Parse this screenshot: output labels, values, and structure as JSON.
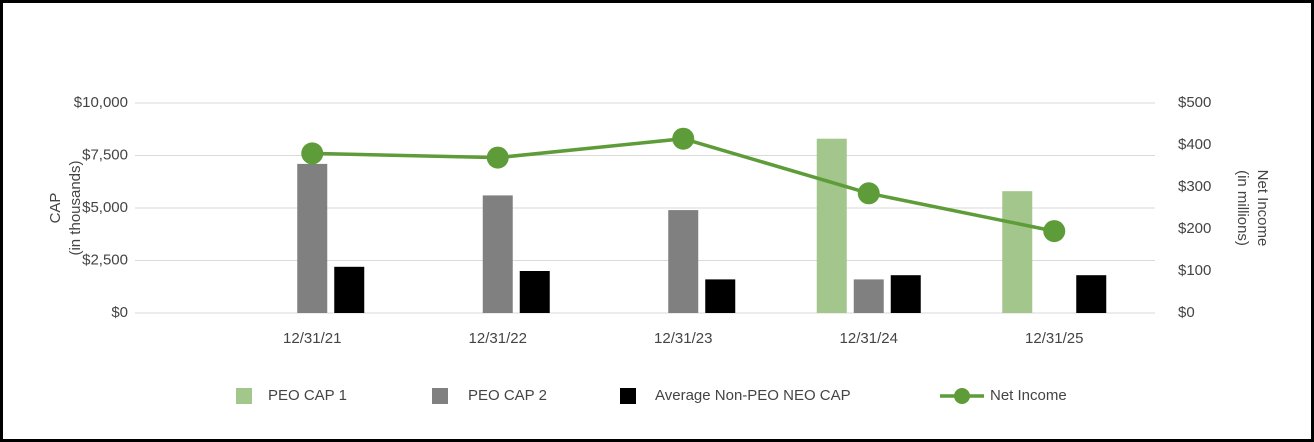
{
  "chart_data": {
    "type": "bar",
    "ylabel": [
      "CAP",
      "(in thousands)"
    ],
    "y2label": [
      "Net Income",
      "(in millions)"
    ],
    "categories": [
      "12/31/21",
      "12/31/22",
      "12/31/23",
      "12/31/24",
      "12/31/25"
    ],
    "series": [
      {
        "name": "PEO CAP 1",
        "color": "#a2c68b",
        "type": "bar",
        "values": [
          null,
          null,
          null,
          8300,
          5800
        ]
      },
      {
        "name": "PEO CAP 2",
        "color": "#808080",
        "type": "bar",
        "values": [
          7100,
          5600,
          4900,
          1600,
          null
        ]
      },
      {
        "name": "Average Non-PEO NEO CAP",
        "color": "#000000",
        "type": "bar",
        "values": [
          2200,
          2000,
          1600,
          1800,
          1800
        ]
      },
      {
        "name": "Net Income",
        "color": "#5e9c3a",
        "type": "line",
        "axis": "y2",
        "values": [
          380,
          370,
          415,
          285,
          195
        ]
      }
    ],
    "ylim": [
      0,
      10000
    ],
    "yticks": [
      {
        "value": 0,
        "label": "$0"
      },
      {
        "value": 2500,
        "label": "$2,500"
      },
      {
        "value": 5000,
        "label": "$5,000"
      },
      {
        "value": 7500,
        "label": "$7,500"
      },
      {
        "value": 10000,
        "label": "$10,000"
      }
    ],
    "y2lim": [
      0,
      500
    ],
    "y2ticks": [
      {
        "value": 0,
        "label": "$0"
      },
      {
        "value": 100,
        "label": "$100"
      },
      {
        "value": 200,
        "label": "$200"
      },
      {
        "value": 300,
        "label": "$300"
      },
      {
        "value": 400,
        "label": "$400"
      },
      {
        "value": 500,
        "label": "$500"
      }
    ],
    "grid": true,
    "legend": "bottom"
  }
}
